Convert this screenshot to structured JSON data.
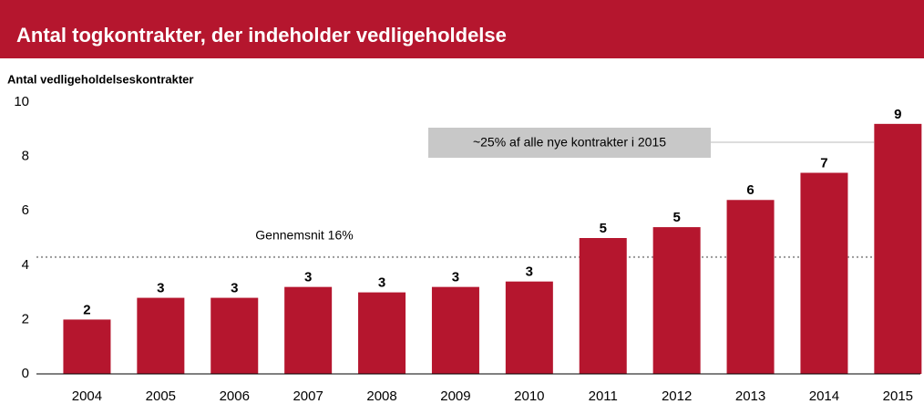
{
  "chart_data": {
    "type": "bar",
    "title": "Antal togkontrakter, der indeholder vedligeholdelse",
    "y_label": "Antal vedligeholdelseskontrakter",
    "categories": [
      "2004",
      "2005",
      "2006",
      "2007",
      "2008",
      "2009",
      "2010",
      "2011",
      "2012",
      "2013",
      "2014",
      "2015"
    ],
    "values": [
      2.0,
      2.8,
      2.8,
      3.2,
      3.0,
      3.2,
      3.4,
      5.0,
      5.4,
      6.4,
      7.4,
      9.2
    ],
    "value_labels": [
      "2",
      "3",
      "3",
      "3",
      "3",
      "3",
      "3",
      "5",
      "5",
      "6",
      "7",
      "9"
    ],
    "color": "#b5162e",
    "ylim": [
      0,
      10
    ],
    "yticks": [
      0,
      2,
      4,
      6,
      8,
      10
    ],
    "grid": false,
    "average": {
      "value": 4.3,
      "label": "Gennemsnit 16%"
    },
    "annotation": "~25% af alle nye kontrakter i 2015"
  }
}
